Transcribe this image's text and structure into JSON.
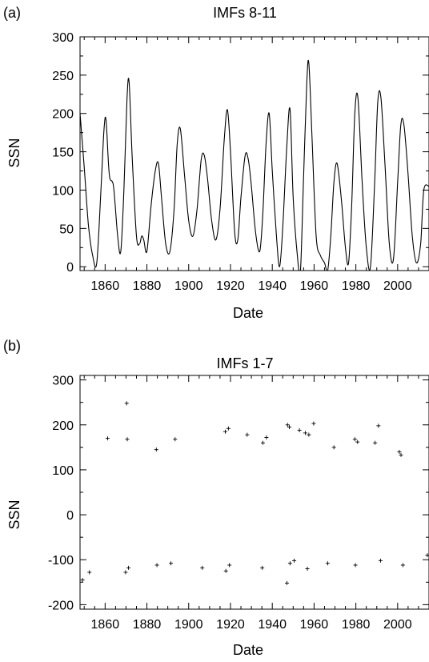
{
  "chart_data": [
    {
      "type": "line",
      "panel_label": "(a)",
      "title": "IMFs 8-11",
      "xlabel": "Date",
      "ylabel": "SSN",
      "xlim": [
        1848,
        2015
      ],
      "ylim": [
        -5,
        300
      ],
      "xticks": [
        1860,
        1880,
        1900,
        1920,
        1940,
        1960,
        1980,
        2000
      ],
      "xtick_labels": [
        "1860",
        "1880",
        "1900",
        "1920",
        "1940",
        "1960",
        "1980",
        "2000"
      ],
      "yticks": [
        0,
        50,
        100,
        150,
        200,
        250,
        300
      ],
      "ytick_labels": [
        "0",
        "50",
        "100",
        "150",
        "200",
        "250",
        "300"
      ],
      "grid": false,
      "series": [
        {
          "x": [
            1848,
            1850,
            1852,
            1854,
            1856,
            1858,
            1859.5,
            1860.5,
            1862,
            1864,
            1866,
            1867.5,
            1869,
            1870.5,
            1871.5,
            1873,
            1875,
            1876.5,
            1877.5,
            1878.5,
            1880,
            1882,
            1884,
            1885.5,
            1887,
            1889,
            1891,
            1893,
            1894.5,
            1896,
            1898,
            1900,
            1902,
            1904,
            1906,
            1907.5,
            1909,
            1911,
            1913,
            1915,
            1917,
            1918.5,
            1920,
            1922,
            1923.5,
            1925,
            1927,
            1928.5,
            1930,
            1932,
            1934,
            1935.5,
            1937,
            1938.5,
            1940,
            1942,
            1943.5,
            1945,
            1947,
            1948.5,
            1950,
            1952,
            1953.5,
            1955,
            1956.5,
            1957.5,
            1959,
            1961,
            1963,
            1965,
            1966.5,
            1968,
            1969.5,
            1971,
            1973,
            1975,
            1976.5,
            1978,
            1979.5,
            1981,
            1983,
            1985,
            1987,
            1989,
            1990.5,
            1992,
            1994,
            1996,
            1998,
            2000,
            2001.5,
            2003,
            2005,
            2007,
            2009,
            2011,
            2012.5,
            2015
          ],
          "y": [
            200,
            130,
            55,
            15,
            5,
            100,
            180,
            190,
            120,
            105,
            40,
            20,
            100,
            220,
            240,
            140,
            40,
            30,
            40,
            35,
            20,
            80,
            125,
            135,
            90,
            30,
            20,
            75,
            160,
            180,
            120,
            60,
            40,
            75,
            140,
            145,
            115,
            60,
            35,
            75,
            165,
            205,
            150,
            45,
            35,
            90,
            145,
            140,
            105,
            45,
            20,
            70,
            160,
            200,
            125,
            40,
            0,
            50,
            160,
            205,
            90,
            15,
            -5,
            120,
            240,
            265,
            170,
            40,
            15,
            5,
            -5,
            40,
            110,
            135,
            90,
            25,
            5,
            80,
            200,
            220,
            110,
            25,
            0,
            110,
            215,
            220,
            130,
            30,
            10,
            110,
            185,
            185,
            120,
            40,
            5,
            30,
            100,
            105
          ]
        }
      ]
    },
    {
      "type": "scatter",
      "panel_label": "(b)",
      "title": "IMFs 1-7",
      "xlabel": "Date",
      "ylabel": "SSN",
      "xlim": [
        1848,
        2015
      ],
      "ylim": [
        -210,
        310
      ],
      "xticks": [
        1860,
        1880,
        1900,
        1920,
        1940,
        1960,
        1980,
        2000
      ],
      "xtick_labels": [
        "1860",
        "1880",
        "1900",
        "1920",
        "1940",
        "1960",
        "1980",
        "2000"
      ],
      "yticks": [
        -200,
        -100,
        0,
        100,
        200,
        300
      ],
      "ytick_labels": [
        "-200",
        "-100",
        "0",
        "100",
        "200",
        "300"
      ],
      "grid": false,
      "series": [
        {
          "marker": "+",
          "points": [
            [
              1870.3,
              248
            ],
            [
              1861.2,
              170
            ],
            [
              1870.6,
              168
            ],
            [
              1884.5,
              145
            ],
            [
              1893.5,
              168
            ],
            [
              1919.0,
              192
            ],
            [
              1917.5,
              185
            ],
            [
              1928.0,
              178
            ],
            [
              1935.5,
              160
            ],
            [
              1937.2,
              172
            ],
            [
              1947.3,
              200
            ],
            [
              1948.2,
              195
            ],
            [
              1953.0,
              188
            ],
            [
              1955.8,
              182
            ],
            [
              1959.8,
              203
            ],
            [
              1957.5,
              178
            ],
            [
              1969.5,
              150
            ],
            [
              1979.5,
              168
            ],
            [
              1980.8,
              162
            ],
            [
              1990.8,
              198
            ],
            [
              1989.2,
              160
            ],
            [
              2000.8,
              140
            ],
            [
              2001.6,
              133
            ],
            [
              1849.2,
              -145
            ],
            [
              1852.5,
              -128
            ],
            [
              1869.8,
              -128
            ],
            [
              1871.2,
              -118
            ],
            [
              1884.8,
              -112
            ],
            [
              1891.5,
              -108
            ],
            [
              1906.5,
              -118
            ],
            [
              1917.8,
              -125
            ],
            [
              1919.5,
              -112
            ],
            [
              1935.2,
              -118
            ],
            [
              1947.0,
              -152
            ],
            [
              1948.5,
              -108
            ],
            [
              1950.5,
              -102
            ],
            [
              1956.8,
              -120
            ],
            [
              1966.5,
              -108
            ],
            [
              1979.8,
              -112
            ],
            [
              1991.8,
              -102
            ],
            [
              2002.5,
              -112
            ],
            [
              2014.2,
              -90
            ]
          ]
        }
      ]
    }
  ]
}
